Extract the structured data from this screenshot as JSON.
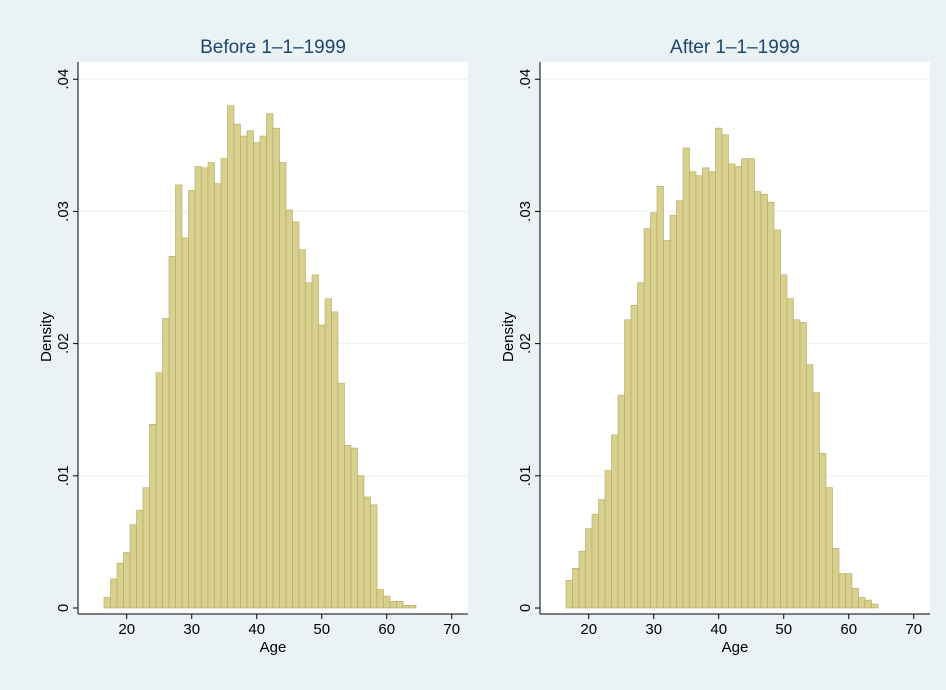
{
  "chart_data": [
    {
      "type": "histogram",
      "title": "Before 1–1–1999",
      "x_label": "Age",
      "y_label": "Density",
      "bins": [
        16.5,
        17.5,
        18.5,
        19.5,
        20.5,
        21.5,
        22.5,
        23.5,
        24.5,
        25.5,
        26.5,
        27.5,
        28.5,
        29.5,
        30.5,
        31.5,
        32.5,
        33.5,
        34.5,
        35.5,
        36.5,
        37.5,
        38.5,
        39.5,
        40.5,
        41.5,
        42.5,
        43.5,
        44.5,
        45.5,
        46.5,
        47.5,
        48.5,
        49.5,
        50.5,
        51.5,
        52.5,
        53.5,
        54.5,
        55.5,
        56.5,
        57.5,
        58.5,
        59.5,
        60.5,
        61.5,
        62.5,
        63.5,
        64.5
      ],
      "values": [
        0.0008,
        0.0022,
        0.0034,
        0.0042,
        0.0063,
        0.0074,
        0.0091,
        0.0139,
        0.0178,
        0.0219,
        0.0266,
        0.032,
        0.028,
        0.0316,
        0.0334,
        0.0333,
        0.0337,
        0.0321,
        0.034,
        0.038,
        0.0366,
        0.0357,
        0.0361,
        0.0352,
        0.0357,
        0.0374,
        0.0363,
        0.0337,
        0.0301,
        0.0292,
        0.0271,
        0.0246,
        0.0252,
        0.0214,
        0.0234,
        0.0224,
        0.017,
        0.0123,
        0.0121,
        0.01,
        0.0084,
        0.0078,
        0.0014,
        0.0009,
        0.0005,
        0.0005,
        0.0002,
        0.0002
      ],
      "color": "#d8d08f",
      "edgecolor": "#b4a95e",
      "xlim": [
        12.5,
        72.5
      ],
      "ylim": [
        0,
        0.041
      ],
      "xticks": [
        20,
        30,
        40,
        50,
        60,
        70
      ],
      "yticks": [
        0,
        {
          "value": 0.01,
          "label": ".01"
        },
        {
          "value": 0.02,
          "label": ".02"
        },
        {
          "value": 0.03,
          "label": ".03"
        },
        {
          "value": 0.04,
          "label": ".04"
        }
      ],
      "grid": true
    },
    {
      "type": "histogram",
      "title": "After 1–1–1999",
      "x_label": "Age",
      "y_label": "Density",
      "bins": [
        16.5,
        17.5,
        18.5,
        19.5,
        20.5,
        21.5,
        22.5,
        23.5,
        24.5,
        25.5,
        26.5,
        27.5,
        28.5,
        29.5,
        30.5,
        31.5,
        32.5,
        33.5,
        34.5,
        35.5,
        36.5,
        37.5,
        38.5,
        39.5,
        40.5,
        41.5,
        42.5,
        43.5,
        44.5,
        45.5,
        46.5,
        47.5,
        48.5,
        49.5,
        50.5,
        51.5,
        52.5,
        53.5,
        54.5,
        55.5,
        56.5,
        57.5,
        58.5,
        59.5,
        60.5,
        61.5,
        62.5,
        63.5,
        64.5
      ],
      "values": [
        0.0021,
        0.003,
        0.0043,
        0.006,
        0.0071,
        0.0082,
        0.0104,
        0.0131,
        0.0161,
        0.0218,
        0.0229,
        0.0246,
        0.0287,
        0.0299,
        0.0319,
        0.0278,
        0.0297,
        0.0308,
        0.0348,
        0.033,
        0.0327,
        0.0333,
        0.033,
        0.0363,
        0.0358,
        0.0336,
        0.0334,
        0.034,
        0.034,
        0.0315,
        0.0313,
        0.0307,
        0.0286,
        0.0252,
        0.0234,
        0.0218,
        0.0216,
        0.0184,
        0.0163,
        0.0117,
        0.0091,
        0.0045,
        0.0026,
        0.0026,
        0.0015,
        0.0008,
        0.0006,
        0.0003
      ],
      "color": "#d8d08f",
      "edgecolor": "#b4a95e",
      "xlim": [
        12.5,
        72.5
      ],
      "ylim": [
        0,
        0.041
      ],
      "xticks": [
        20,
        30,
        40,
        50,
        60,
        70
      ],
      "yticks": [
        0,
        {
          "value": 0.01,
          "label": ".01"
        },
        {
          "value": 0.02,
          "label": ".02"
        },
        {
          "value": 0.03,
          "label": ".03"
        },
        {
          "value": 0.04,
          "label": ".04"
        }
      ],
      "grid": true
    }
  ]
}
